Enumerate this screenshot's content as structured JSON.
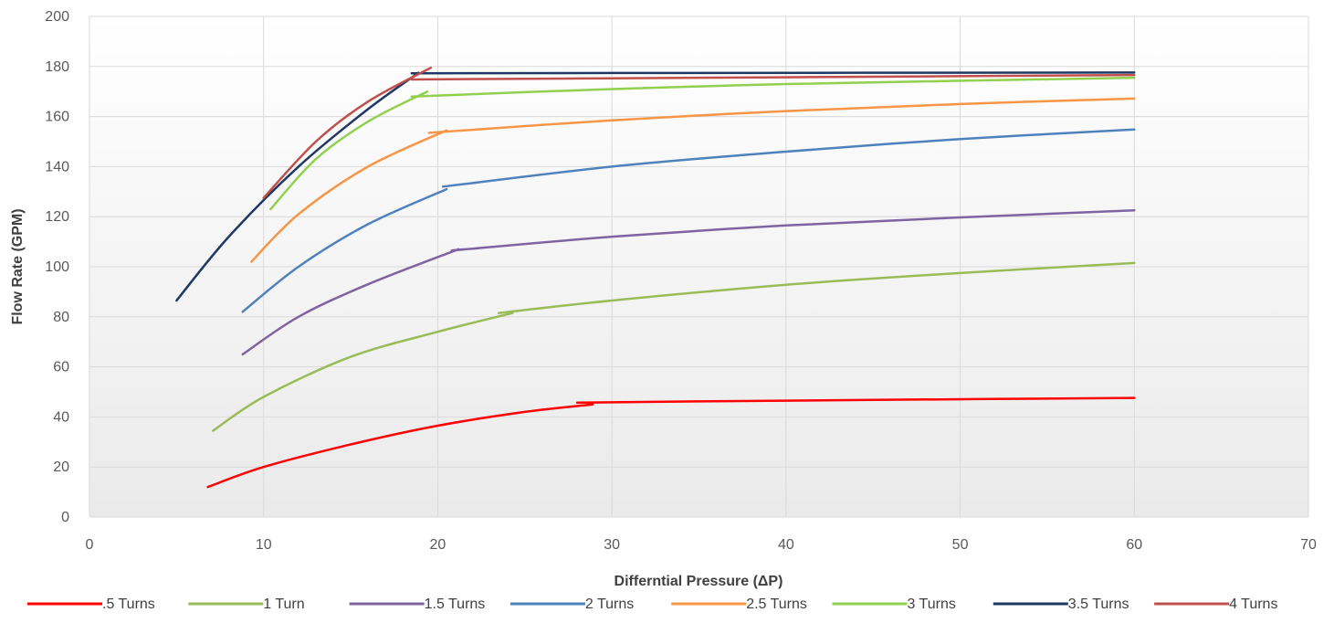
{
  "chart_data": {
    "type": "line",
    "xlabel": "Differntial Pressure (ΔP)",
    "ylabel": "Flow Rate (GPM)",
    "xlim": [
      0,
      70
    ],
    "ylim": [
      0,
      200
    ],
    "xticks": [
      "0",
      "10",
      "20",
      "30",
      "40",
      "50",
      "60",
      "70"
    ],
    "yticks": [
      "0",
      "20",
      "40",
      "60",
      "80",
      "100",
      "120",
      "140",
      "160",
      "180",
      "200"
    ],
    "grid": true,
    "legend_position": "bottom",
    "series": [
      {
        "name": ".5 Turns",
        "color": "#ff0000",
        "segments": [
          [
            [
              6.8,
              12
            ],
            [
              10,
              20
            ],
            [
              15,
              29
            ],
            [
              20,
              36.5
            ],
            [
              25,
              42
            ],
            [
              28.9,
              45
            ]
          ],
          [
            [
              28,
              45.7
            ],
            [
              35,
              46.2
            ],
            [
              45,
              46.8
            ],
            [
              60,
              47.6
            ]
          ]
        ]
      },
      {
        "name": "1 Turn",
        "color": "#9bbb59",
        "segments": [
          [
            [
              7.1,
              34.5
            ],
            [
              10,
              48
            ],
            [
              15,
              64
            ],
            [
              20,
              74
            ],
            [
              24.3,
              81.5
            ]
          ],
          [
            [
              23.5,
              81.5
            ],
            [
              30,
              86.5
            ],
            [
              40,
              92.8
            ],
            [
              50,
              97.5
            ],
            [
              60,
              101.5
            ]
          ]
        ]
      },
      {
        "name": "1.5 Turns",
        "color": "#8064a2",
        "segments": [
          [
            [
              8.8,
              65
            ],
            [
              12,
              80
            ],
            [
              16,
              93
            ],
            [
              21.2,
              107
            ]
          ],
          [
            [
              20.8,
              106.5
            ],
            [
              30,
              112
            ],
            [
              40,
              116.5
            ],
            [
              50,
              119.7
            ],
            [
              60,
              122.5
            ]
          ]
        ]
      },
      {
        "name": "2 Turns",
        "color": "#4f81bd",
        "segments": [
          [
            [
              8.8,
              82
            ],
            [
              12,
              100
            ],
            [
              16,
              117
            ],
            [
              20.5,
              131
            ]
          ],
          [
            [
              20.3,
              132
            ],
            [
              30,
              140
            ],
            [
              40,
              146
            ],
            [
              50,
              151
            ],
            [
              60,
              154.8
            ]
          ]
        ]
      },
      {
        "name": "2.5 Turns",
        "color": "#f79646",
        "segments": [
          [
            [
              9.3,
              102
            ],
            [
              12,
              121
            ],
            [
              16,
              140
            ],
            [
              20.5,
              154.5
            ]
          ],
          [
            [
              19.5,
              153.5
            ],
            [
              30,
              158.5
            ],
            [
              40,
              162.2
            ],
            [
              50,
              165
            ],
            [
              60,
              167.2
            ]
          ]
        ]
      },
      {
        "name": "3 Turns",
        "color": "#92d050",
        "segments": [
          [
            [
              10.4,
              123
            ],
            [
              13,
              143
            ],
            [
              16,
              158
            ],
            [
              19.4,
              170
            ]
          ],
          [
            [
              18.5,
              168
            ],
            [
              30,
              171
            ],
            [
              40,
              173
            ],
            [
              50,
              174.3
            ],
            [
              60,
              175.5
            ]
          ]
        ]
      },
      {
        "name": "3.5 Turns",
        "color": "#1f3864",
        "segments": [
          [
            [
              5,
              86.5
            ],
            [
              8,
              112
            ],
            [
              12,
              140
            ],
            [
              16,
              163
            ],
            [
              18.9,
              177.5
            ]
          ],
          [
            [
              18.5,
              177.3
            ],
            [
              30,
              177.4
            ],
            [
              60,
              177.6
            ]
          ]
        ]
      },
      {
        "name": "4 Turns",
        "color": "#c0504d",
        "segments": [
          [
            [
              10,
              127.5
            ],
            [
              13,
              150
            ],
            [
              16,
              166
            ],
            [
              19.6,
              179.5
            ]
          ],
          [
            [
              18.5,
              174.8
            ],
            [
              30,
              175.3
            ],
            [
              45,
              175.9
            ],
            [
              60,
              176.6
            ]
          ]
        ]
      }
    ]
  }
}
